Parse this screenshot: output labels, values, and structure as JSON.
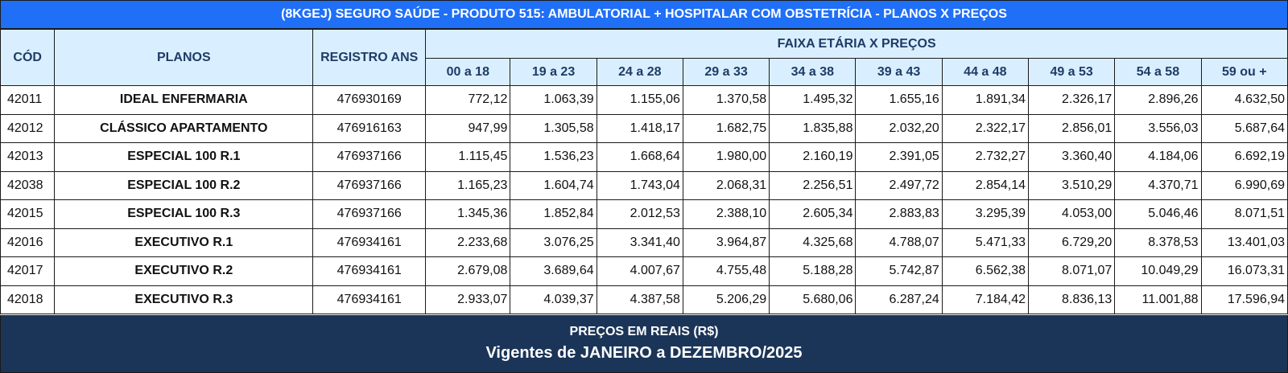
{
  "title": "(8KGEJ) SEGURO SAÚDE - PRODUTO 515: AMBULATORIAL + HOSPITALAR COM OBSTETRÍCIA - PLANOS X PREÇOS",
  "headers": {
    "code": "CÓD",
    "plans": "PLANOS",
    "registry": "REGISTRO ANS",
    "age_group": "FAIXA ETÁRIA X PREÇOS",
    "ages": [
      "00 a 18",
      "19 a 23",
      "24 a 28",
      "29 a 33",
      "34 a 38",
      "39 a 43",
      "44 a 48",
      "49 a 53",
      "54 a 58",
      "59 ou +"
    ]
  },
  "rows": [
    {
      "code": "42011",
      "plan": "IDEAL ENFERMARIA",
      "registry": "476930169",
      "prices": [
        "772,12",
        "1.063,39",
        "1.155,06",
        "1.370,58",
        "1.495,32",
        "1.655,16",
        "1.891,34",
        "2.326,17",
        "2.896,26",
        "4.632,50"
      ]
    },
    {
      "code": "42012",
      "plan": "CLÁSSICO APARTAMENTO",
      "registry": "476916163",
      "prices": [
        "947,99",
        "1.305,58",
        "1.418,17",
        "1.682,75",
        "1.835,88",
        "2.032,20",
        "2.322,17",
        "2.856,01",
        "3.556,03",
        "5.687,64"
      ]
    },
    {
      "code": "42013",
      "plan": "ESPECIAL 100 R.1",
      "registry": "476937166",
      "prices": [
        "1.115,45",
        "1.536,23",
        "1.668,64",
        "1.980,00",
        "2.160,19",
        "2.391,05",
        "2.732,27",
        "3.360,40",
        "4.184,06",
        "6.692,19"
      ]
    },
    {
      "code": "42038",
      "plan": "ESPECIAL 100 R.2",
      "registry": "476937166",
      "prices": [
        "1.165,23",
        "1.604,74",
        "1.743,04",
        "2.068,31",
        "2.256,51",
        "2.497,72",
        "2.854,14",
        "3.510,29",
        "4.370,71",
        "6.990,69"
      ]
    },
    {
      "code": "42015",
      "plan": "ESPECIAL 100 R.3",
      "registry": "476937166",
      "prices": [
        "1.345,36",
        "1.852,84",
        "2.012,53",
        "2.388,10",
        "2.605,34",
        "2.883,83",
        "3.295,39",
        "4.053,00",
        "5.046,46",
        "8.071,51"
      ]
    },
    {
      "code": "42016",
      "plan": "EXECUTIVO R.1",
      "registry": "476934161",
      "prices": [
        "2.233,68",
        "3.076,25",
        "3.341,40",
        "3.964,87",
        "4.325,68",
        "4.788,07",
        "5.471,33",
        "6.729,20",
        "8.378,53",
        "13.401,03"
      ]
    },
    {
      "code": "42017",
      "plan": "EXECUTIVO R.2",
      "registry": "476934161",
      "prices": [
        "2.679,08",
        "3.689,64",
        "4.007,67",
        "4.755,48",
        "5.188,28",
        "5.742,87",
        "6.562,38",
        "8.071,07",
        "10.049,29",
        "16.073,31"
      ]
    },
    {
      "code": "42018",
      "plan": "EXECUTIVO R.3",
      "registry": "476934161",
      "prices": [
        "2.933,07",
        "4.039,37",
        "4.387,58",
        "5.206,29",
        "5.680,06",
        "6.287,24",
        "7.184,42",
        "8.836,13",
        "11.001,88",
        "17.596,94"
      ]
    }
  ],
  "footer": {
    "currency_note": "PREÇOS EM REAIS (R$)",
    "validity": "Vigentes de JANEIRO a DEZEMBRO/2025"
  },
  "colors": {
    "title_bg": "#1f6ff7",
    "header_bg": "#d9efff",
    "header_text": "#1f3b66",
    "footer_bg": "#1b3558"
  }
}
